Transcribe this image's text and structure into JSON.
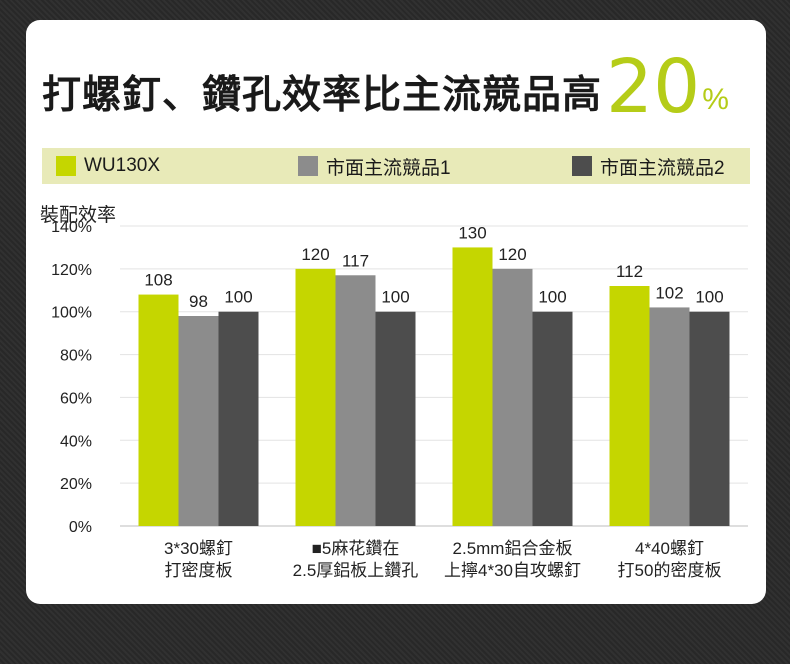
{
  "headline": {
    "main": "打螺釘、鑽孔效率比主流競品高",
    "pct_number": "20",
    "pct_sign": "%"
  },
  "colors": {
    "accent": "#b5cc18",
    "series": [
      "#c5d600",
      "#8c8c8c",
      "#4d4d4d"
    ],
    "legend_bg": "#e8eab8"
  },
  "chart_data": {
    "type": "bar",
    "title": "",
    "ylabel": "裝配效率",
    "xlabel": "",
    "ylim": [
      0,
      140
    ],
    "yticks": [
      "0%",
      "20%",
      "40%",
      "60%",
      "80%",
      "100%",
      "120%",
      "140%"
    ],
    "ytick_values": [
      0,
      20,
      40,
      60,
      80,
      100,
      120,
      140
    ],
    "grid": true,
    "legend_position": "top",
    "categories": [
      [
        "3*30螺釘",
        "打密度板"
      ],
      [
        "■5麻花鑽在",
        "2.5厚鋁板上鑽孔"
      ],
      [
        "2.5mm鋁合金板",
        "上擰4*30自攻螺釘"
      ],
      [
        "4*40螺釘",
        "打50的密度板"
      ]
    ],
    "series": [
      {
        "name": "WU130X",
        "values": [
          108,
          120,
          130,
          112
        ]
      },
      {
        "name": "市面主流競品1",
        "values": [
          98,
          117,
          120,
          102
        ]
      },
      {
        "name": "市面主流競品2",
        "values": [
          100,
          100,
          100,
          100
        ]
      }
    ]
  }
}
